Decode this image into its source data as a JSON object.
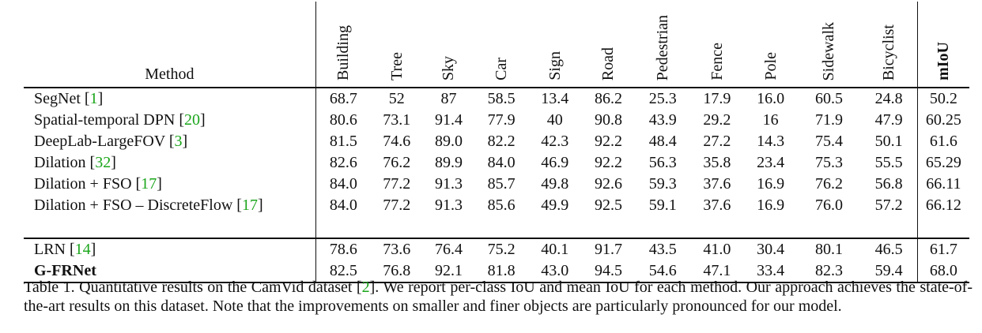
{
  "table": {
    "method_header": "Method",
    "columns": [
      "Building",
      "Tree",
      "Sky",
      "Car",
      "Sign",
      "Road",
      "Pedestrian",
      "Fence",
      "Pole",
      "Sidewalk",
      "Bicyclist",
      "mIoU"
    ],
    "group1": [
      {
        "method": "SegNet",
        "ref": "1",
        "values": [
          "68.7",
          "52",
          "87",
          "58.5",
          "13.4",
          "86.2",
          "25.3",
          "17.9",
          "16.0",
          "60.5",
          "24.8",
          "50.2"
        ],
        "bold": []
      },
      {
        "method": "Spatial-temporal DPN",
        "ref": "20",
        "values": [
          "80.6",
          "73.1",
          "91.4",
          "77.9",
          "40",
          "90.8",
          "43.9",
          "29.2",
          "16",
          "71.9",
          "47.9",
          "60.25"
        ],
        "bold": []
      },
      {
        "method": "DeepLab-LargeFOV",
        "ref": "3",
        "values": [
          "81.5",
          "74.6",
          "89.0",
          "82.2",
          "42.3",
          "92.2",
          "48.4",
          "27.2",
          "14.3",
          "75.4",
          "50.1",
          "61.6"
        ],
        "bold": []
      },
      {
        "method": "Dilation",
        "ref": "32",
        "values": [
          "82.6",
          "76.2",
          "89.9",
          "84.0",
          "46.9",
          "92.2",
          "56.3",
          "35.8",
          "23.4",
          "75.3",
          "55.5",
          "65.29"
        ],
        "bold": []
      },
      {
        "method": "Dilation + FSO",
        "ref": "17",
        "values": [
          "84.0",
          "77.2",
          "91.3",
          "85.7",
          "49.8",
          "92.6",
          "59.3",
          "37.6",
          "16.9",
          "76.2",
          "56.8",
          "66.11"
        ],
        "bold": [
          0,
          1,
          3,
          6
        ]
      },
      {
        "method": "Dilation + FSO – DiscreteFlow",
        "ref": "17",
        "values": [
          "84.0",
          "77.2",
          "91.3",
          "85.6",
          "49.9",
          "92.5",
          "59.1",
          "37.6",
          "16.9",
          "76.0",
          "57.2",
          "66.12"
        ],
        "bold": [
          0,
          4
        ]
      }
    ],
    "group2": [
      {
        "method": "LRN",
        "ref": "14",
        "values": [
          "78.6",
          "73.6",
          "76.4",
          "75.2",
          "40.1",
          "91.7",
          "43.5",
          "41.0",
          "30.4",
          "80.1",
          "46.5",
          "61.7"
        ],
        "bold": []
      },
      {
        "method": "G-FRNet",
        "ref": "",
        "method_bold": true,
        "values": [
          "82.5",
          "76.8",
          "92.1",
          "81.8",
          "43.0",
          "94.5",
          "54.6",
          "47.1",
          "33.4",
          "82.3",
          "59.4",
          "68.0"
        ],
        "bold": [
          2,
          5,
          7,
          8,
          9,
          10,
          11
        ]
      }
    ]
  },
  "caption": {
    "before_ref": "Table 1. Quantitative results on the CamVid dataset [",
    "ref": "2",
    "after_ref": "]. We report per-class IoU and mean IoU for each method. Our approach achieves the state-of-the-art results on this dataset. Note that the improvements on smaller and finer objects are particularly pronounced for our model."
  }
}
